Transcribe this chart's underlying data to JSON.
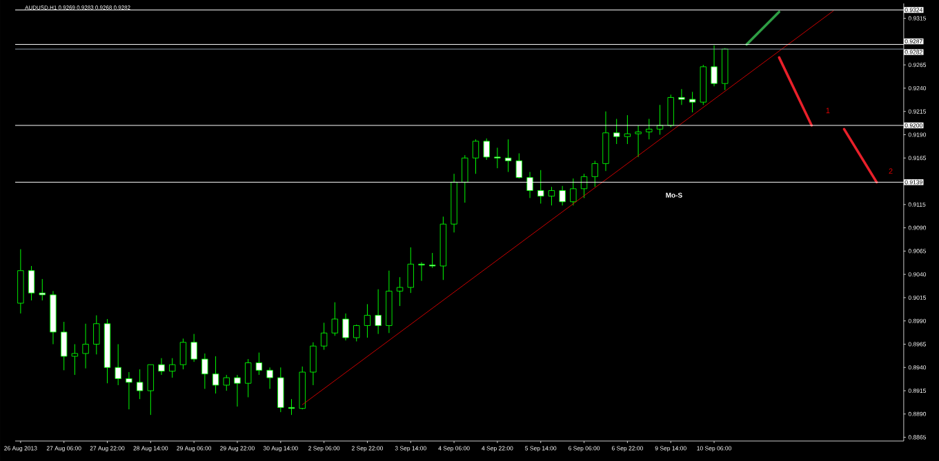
{
  "chart_data": {
    "type": "candlestick",
    "title": "AUDUSD,H1  0.9269 0.9283 0.9268 0.9282",
    "color": "#00ff00",
    "categories": [
      "26 Aug 2013",
      null,
      null,
      null,
      "27 Aug 06:00",
      null,
      null,
      null,
      "27 Aug 22:00",
      null,
      null,
      null,
      "28 Aug 14:00",
      null,
      null,
      null,
      "29 Aug 06:00",
      null,
      null,
      null,
      "29 Aug 22:00",
      null,
      null,
      null,
      "30 Aug 14:00",
      null,
      null,
      null,
      "2 Sep 06:00",
      null,
      null,
      null,
      "2 Sep 22:00",
      null,
      null,
      null,
      "3 Sep 14:00",
      null,
      null,
      null,
      "4 Sep 06:00",
      null,
      null,
      null,
      "4 Sep 22:00",
      null,
      null,
      null,
      "5 Sep 14:00",
      null,
      null,
      null,
      "6 Sep 06:00",
      null,
      null,
      null,
      "6 Sep 22:00",
      null,
      null,
      null,
      "9 Sep 14:00",
      null,
      null,
      null,
      "10 Sep 06:00",
      null,
      null,
      null,
      null,
      null,
      null,
      null,
      null,
      null,
      null,
      null,
      null,
      null,
      null,
      null,
      null,
      null
    ],
    "ohlc": [
      [
        0.9009,
        0.9067,
        0.8998,
        0.9044
      ],
      [
        0.9044,
        0.9049,
        0.9012,
        0.902
      ],
      [
        0.902,
        0.9035,
        0.9012,
        0.9018
      ],
      [
        0.9018,
        0.9022,
        0.8965,
        0.8978
      ],
      [
        0.8978,
        0.8989,
        0.8937,
        0.8952
      ],
      [
        0.8952,
        0.8965,
        0.8932,
        0.8955
      ],
      [
        0.8955,
        0.8987,
        0.8939,
        0.8965
      ],
      [
        0.8965,
        0.8996,
        0.8954,
        0.8987
      ],
      [
        0.8987,
        0.8992,
        0.8923,
        0.894
      ],
      [
        0.894,
        0.8965,
        0.8921,
        0.8928
      ],
      [
        0.8928,
        0.8935,
        0.8895,
        0.8924
      ],
      [
        0.8924,
        0.8938,
        0.8906,
        0.8915
      ],
      [
        0.8915,
        0.8943,
        0.8889,
        0.8943
      ],
      [
        0.8943,
        0.895,
        0.8932,
        0.8936
      ],
      [
        0.8936,
        0.895,
        0.8929,
        0.8943
      ],
      [
        0.8943,
        0.8971,
        0.8938,
        0.8967
      ],
      [
        0.8967,
        0.8976,
        0.8946,
        0.8949
      ],
      [
        0.8949,
        0.8955,
        0.8917,
        0.8933
      ],
      [
        0.8933,
        0.8952,
        0.8912,
        0.8921
      ],
      [
        0.8921,
        0.8932,
        0.8915,
        0.8929
      ],
      [
        0.8929,
        0.8932,
        0.8898,
        0.8923
      ],
      [
        0.8923,
        0.8949,
        0.8908,
        0.8945
      ],
      [
        0.8945,
        0.8956,
        0.8932,
        0.8937
      ],
      [
        0.8937,
        0.894,
        0.8917,
        0.8929
      ],
      [
        0.8929,
        0.894,
        0.8892,
        0.8897
      ],
      [
        0.8897,
        0.8906,
        0.8889,
        0.8896
      ],
      [
        0.8896,
        0.8941,
        0.8895,
        0.8935
      ],
      [
        0.8935,
        0.8967,
        0.8921,
        0.8963
      ],
      [
        0.8963,
        0.8988,
        0.8959,
        0.8977
      ],
      [
        0.8977,
        0.901,
        0.8974,
        0.8992
      ],
      [
        0.8992,
        0.8998,
        0.8969,
        0.8972
      ],
      [
        0.8972,
        0.8986,
        0.8968,
        0.8985
      ],
      [
        0.8985,
        0.9008,
        0.8972,
        0.8996
      ],
      [
        0.8996,
        0.9024,
        0.8976,
        0.8985
      ],
      [
        0.8985,
        0.9044,
        0.8977,
        0.9022
      ],
      [
        0.9022,
        0.9037,
        0.9006,
        0.9026
      ],
      [
        0.9026,
        0.9069,
        0.902,
        0.9051
      ],
      [
        0.9051,
        0.9053,
        0.9033,
        0.905
      ],
      [
        0.905,
        0.9063,
        0.9047,
        0.9049
      ],
      [
        0.9049,
        0.9102,
        0.9034,
        0.9094
      ],
      [
        0.9094,
        0.9148,
        0.9085,
        0.9139
      ],
      [
        0.9139,
        0.9168,
        0.9117,
        0.9165
      ],
      [
        0.9165,
        0.9185,
        0.9148,
        0.9183
      ],
      [
        0.9183,
        0.9186,
        0.9163,
        0.9166
      ],
      [
        0.9166,
        0.9176,
        0.9154,
        0.9165
      ],
      [
        0.9165,
        0.9185,
        0.915,
        0.9162
      ],
      [
        0.9162,
        0.917,
        0.9143,
        0.9144
      ],
      [
        0.9144,
        0.915,
        0.9122,
        0.913
      ],
      [
        0.913,
        0.9152,
        0.9116,
        0.9124
      ],
      [
        0.9124,
        0.9134,
        0.9114,
        0.913
      ],
      [
        0.913,
        0.9135,
        0.9114,
        0.9118
      ],
      [
        0.9118,
        0.9143,
        0.9114,
        0.9132
      ],
      [
        0.9132,
        0.9148,
        0.9122,
        0.9145
      ],
      [
        0.9145,
        0.9162,
        0.9134,
        0.9159
      ],
      [
        0.9159,
        0.9215,
        0.9151,
        0.9192
      ],
      [
        0.9192,
        0.9207,
        0.918,
        0.9188
      ],
      [
        0.9188,
        0.9211,
        0.918,
        0.9191
      ],
      [
        0.9191,
        0.92,
        0.9166,
        0.9193
      ],
      [
        0.9193,
        0.9207,
        0.9185,
        0.9196
      ],
      [
        0.9196,
        0.9222,
        0.919,
        0.92
      ],
      [
        0.92,
        0.9233,
        0.9198,
        0.923
      ],
      [
        0.923,
        0.9239,
        0.9222,
        0.9228
      ],
      [
        0.9228,
        0.9236,
        0.9214,
        0.9225
      ],
      [
        0.9225,
        0.9265,
        0.9222,
        0.9263
      ],
      [
        0.9263,
        0.9286,
        0.9242,
        0.9245
      ],
      [
        0.9245,
        0.9283,
        0.9238,
        0.9282
      ],
      null,
      null,
      null,
      null,
      null,
      null,
      null,
      null,
      null,
      null,
      null,
      null,
      null,
      null,
      null,
      null
    ],
    "series": [
      {
        "type": "line",
        "color": "#ff0000",
        "values": [
          null,
          null,
          null,
          null,
          null,
          null,
          null,
          null,
          null,
          null,
          null,
          null,
          null,
          null,
          null,
          null,
          null,
          null,
          null,
          null,
          null,
          null,
          null,
          null,
          null,
          null,
          0.89,
          null,
          null,
          null,
          null,
          null,
          null,
          null,
          null,
          null,
          null,
          null,
          null,
          null,
          null,
          null,
          null,
          null,
          null,
          null,
          null,
          null,
          null,
          null,
          null,
          null,
          null,
          null,
          null,
          null,
          null,
          null,
          null,
          null,
          null,
          null,
          null,
          null,
          null,
          null,
          null,
          null,
          null,
          null,
          null,
          null,
          null,
          null,
          null,
          0.9323,
          null,
          null,
          null,
          null,
          null,
          null
        ]
      },
      {
        "type": "line",
        "color": "#2e9e44",
        "values": [
          null,
          null,
          null,
          null,
          null,
          null,
          null,
          null,
          null,
          null,
          null,
          null,
          null,
          null,
          null,
          null,
          null,
          null,
          null,
          null,
          null,
          null,
          null,
          null,
          null,
          null,
          null,
          null,
          null,
          null,
          null,
          null,
          null,
          null,
          null,
          null,
          null,
          null,
          null,
          null,
          null,
          null,
          null,
          null,
          null,
          null,
          null,
          null,
          null,
          null,
          null,
          null,
          null,
          null,
          null,
          null,
          null,
          null,
          null,
          null,
          null,
          null,
          null,
          null,
          null,
          null,
          null,
          0.9287,
          null,
          null,
          0.9322,
          null,
          null,
          null,
          null,
          null,
          null,
          null,
          null,
          null,
          null,
          null
        ]
      },
      {
        "type": "line",
        "color": "#e8202a",
        "values": [
          null,
          null,
          null,
          null,
          null,
          null,
          null,
          null,
          null,
          null,
          null,
          null,
          null,
          null,
          null,
          null,
          null,
          null,
          null,
          null,
          null,
          null,
          null,
          null,
          null,
          null,
          null,
          null,
          null,
          null,
          null,
          null,
          null,
          null,
          null,
          null,
          null,
          null,
          null,
          null,
          null,
          null,
          null,
          null,
          null,
          null,
          null,
          null,
          null,
          null,
          null,
          null,
          null,
          null,
          null,
          null,
          null,
          null,
          null,
          null,
          null,
          null,
          null,
          null,
          null,
          null,
          null,
          null,
          null,
          null,
          0.9273,
          null,
          null,
          0.92,
          null,
          null,
          null,
          null,
          null,
          null,
          null,
          null
        ]
      },
      {
        "type": "line",
        "color": "#e8202a",
        "values": [
          null,
          null,
          null,
          null,
          null,
          null,
          null,
          null,
          null,
          null,
          null,
          null,
          null,
          null,
          null,
          null,
          null,
          null,
          null,
          null,
          null,
          null,
          null,
          null,
          null,
          null,
          null,
          null,
          null,
          null,
          null,
          null,
          null,
          null,
          null,
          null,
          null,
          null,
          null,
          null,
          null,
          null,
          null,
          null,
          null,
          null,
          null,
          null,
          null,
          null,
          null,
          null,
          null,
          null,
          null,
          null,
          null,
          null,
          null,
          null,
          null,
          null,
          null,
          null,
          null,
          null,
          null,
          null,
          null,
          null,
          null,
          null,
          null,
          null,
          null,
          null,
          0.9196,
          null,
          null,
          0.9139,
          null,
          null
        ]
      }
    ],
    "ylim": [
      0.8861,
      0.9331
    ],
    "yticks": [
      {
        "value": 0.8865,
        "label": "0.8865"
      },
      {
        "value": 0.889,
        "label": "0.8890"
      },
      {
        "value": 0.8915,
        "label": "0.8915"
      },
      {
        "value": 0.894,
        "label": "0.8940"
      },
      {
        "value": 0.8965,
        "label": "0.8965"
      },
      {
        "value": 0.899,
        "label": "0.8990"
      },
      {
        "value": 0.9015,
        "label": "0.9015"
      },
      {
        "value": 0.904,
        "label": "0.9040"
      },
      {
        "value": 0.9065,
        "label": "0.9065"
      },
      {
        "value": 0.909,
        "label": "0.9090"
      },
      {
        "value": 0.9115,
        "label": "0.9115"
      },
      {
        "value": 0.914,
        "label": null
      },
      {
        "value": 0.9165,
        "label": "0.9165"
      },
      {
        "value": 0.919,
        "label": "0.9190"
      },
      {
        "value": 0.9215,
        "label": "0.9215"
      },
      {
        "value": 0.924,
        "label": "0.9240"
      },
      {
        "value": 0.9265,
        "label": "0.9265"
      },
      {
        "value": 0.929,
        "label": null
      },
      {
        "value": 0.9315,
        "label": "0.9315"
      }
    ],
    "ref_lines": [
      {
        "axis": "y",
        "value": 0.9324,
        "label": "0.9324",
        "color": "#ffffff"
      },
      {
        "axis": "y",
        "value": 0.9287,
        "label": "0.9287",
        "color": "#ffffff"
      },
      {
        "axis": "y",
        "value": 0.9282,
        "label": "0.9282",
        "color": "#8c9aa8"
      },
      {
        "axis": "y",
        "value": 0.92,
        "label": "0.9200",
        "color": "#ffffff"
      },
      {
        "axis": "y",
        "value": 0.9139,
        "label": "0.9139",
        "color": "#ffffff"
      }
    ],
    "annotations": [
      "1",
      "2",
      "Mo-S"
    ]
  }
}
